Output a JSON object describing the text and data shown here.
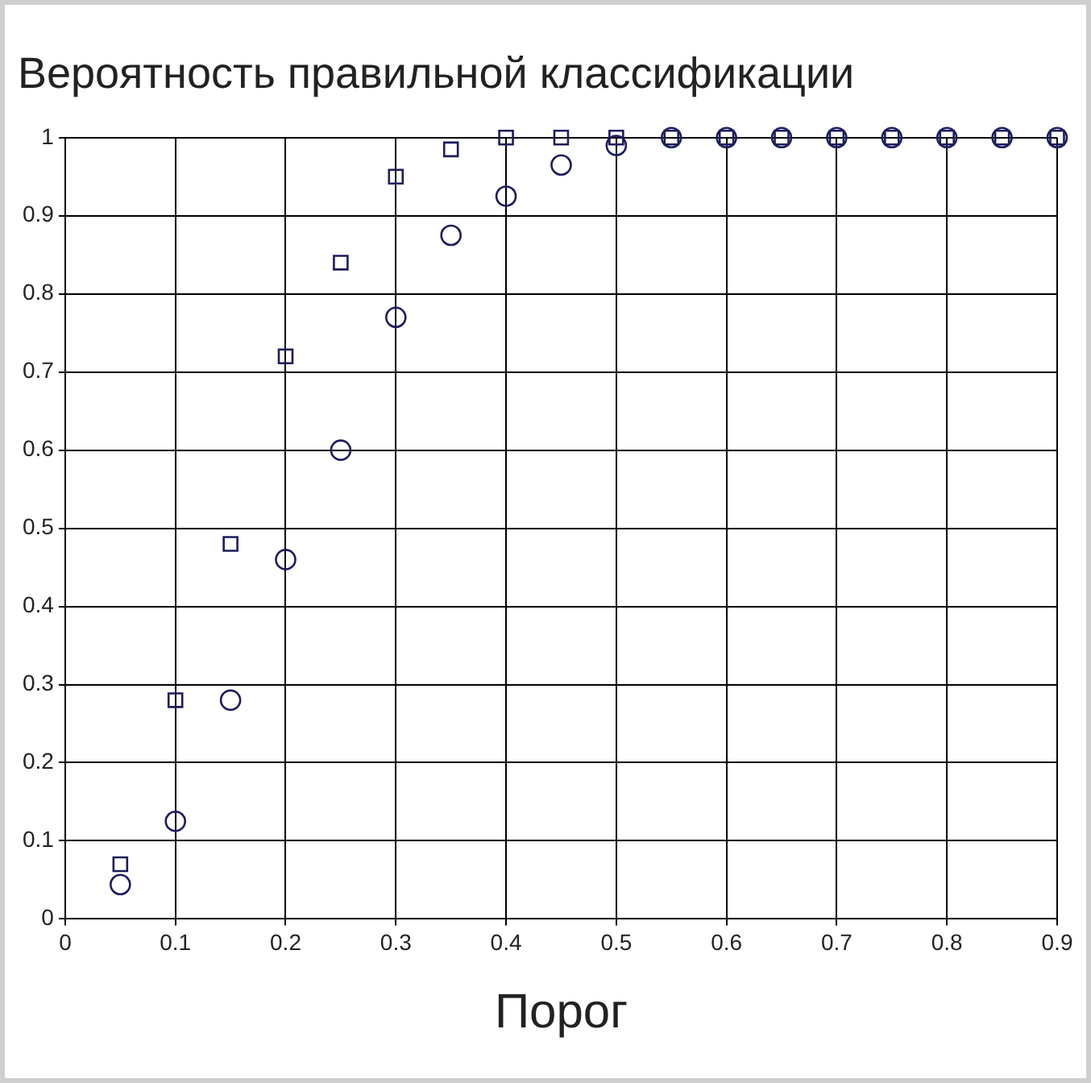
{
  "chart_data": {
    "type": "scatter",
    "title": "Вероятность правильной классификации",
    "xlabel": "Порог",
    "xlim": [
      0,
      0.9
    ],
    "xticks": [
      0,
      0.1,
      0.2,
      0.3,
      0.4,
      0.5,
      0.6,
      0.7,
      0.8,
      0.9
    ],
    "ylim": [
      0,
      1
    ],
    "yticks": [
      0,
      0.1,
      0.2,
      0.3,
      0.4,
      0.5,
      0.6,
      0.7,
      0.8,
      0.9,
      1
    ],
    "grid": true,
    "legend": false,
    "x": [
      0.05,
      0.1,
      0.15,
      0.2,
      0.25,
      0.3,
      0.35,
      0.4,
      0.45,
      0.5,
      0.55,
      0.6,
      0.65,
      0.7,
      0.75,
      0.8,
      0.85,
      0.9
    ],
    "series": [
      {
        "color": "#1c1c5e",
        "marker": "square",
        "values": [
          0.07,
          0.28,
          0.48,
          0.72,
          0.84,
          0.95,
          0.985,
          1,
          1,
          1,
          1,
          1,
          1,
          1,
          1,
          1,
          1,
          1
        ]
      },
      {
        "color": "#1c1c5e",
        "marker": "circle",
        "values": [
          0.044,
          0.125,
          0.28,
          0.46,
          0.6,
          0.77,
          0.875,
          0.925,
          0.965,
          0.99,
          1,
          1,
          1,
          1,
          1,
          1,
          1,
          1
        ]
      }
    ]
  }
}
